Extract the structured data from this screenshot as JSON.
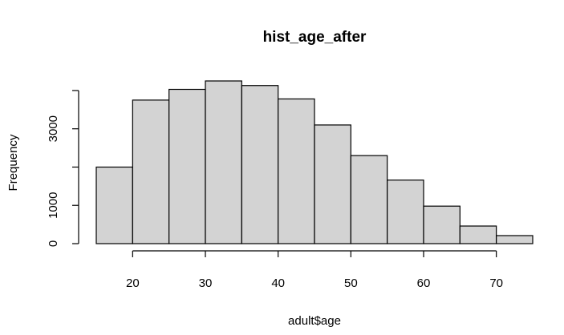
{
  "chart_data": {
    "type": "bar",
    "title": "hist_age_after",
    "xlabel": "adult$age",
    "ylabel": "Frequency",
    "bin_edges": [
      15,
      20,
      25,
      30,
      35,
      40,
      45,
      50,
      55,
      60,
      65,
      70,
      75
    ],
    "values": [
      2000,
      3750,
      4030,
      4250,
      4130,
      3780,
      3100,
      2300,
      1660,
      980,
      460,
      210
    ],
    "xlim": [
      15,
      75
    ],
    "ylim": [
      0,
      4250
    ],
    "x_ticks": [
      20,
      30,
      40,
      50,
      60,
      70
    ],
    "y_ticks": [
      0,
      1000,
      2000,
      3000,
      4000
    ],
    "y_tick_labels": [
      "0",
      "1000",
      "",
      "3000",
      ""
    ],
    "grid": false,
    "colors": {
      "bar_fill": "#d3d3d3",
      "bar_stroke": "#000000"
    }
  }
}
